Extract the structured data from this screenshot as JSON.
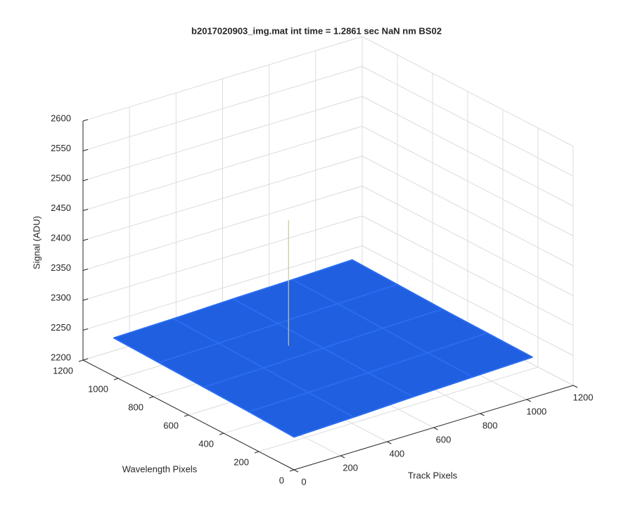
{
  "chart_data": {
    "type": "surface",
    "title": "b2017020903_img.mat int time = 1.2861 sec  NaN nm BS02",
    "xlabel": "Track Pixels",
    "ylabel": "Wavelength Pixels",
    "zlabel": "Signal (ADU)",
    "xlim": [
      0,
      1200
    ],
    "ylim": [
      0,
      1200
    ],
    "zlim": [
      2200,
      2600
    ],
    "xticks": [
      0,
      200,
      400,
      600,
      800,
      1000,
      1200
    ],
    "yticks": [
      0,
      200,
      400,
      600,
      800,
      1000,
      1200
    ],
    "zticks": [
      2200,
      2250,
      2300,
      2350,
      2400,
      2450,
      2500,
      2550,
      2600
    ],
    "grid": true,
    "color": "#1f5fe0",
    "x": [
      0,
      256,
      512,
      768,
      1024
    ],
    "y": [
      0,
      256,
      512,
      768,
      1024
    ],
    "z": [
      [
        2255,
        2258,
        2262,
        2265,
        2268
      ],
      [
        2258,
        2260,
        2263,
        2266,
        2269
      ],
      [
        2260,
        2262,
        2265,
        2268,
        2270
      ],
      [
        2262,
        2264,
        2267,
        2270,
        2272
      ],
      [
        2264,
        2266,
        2269,
        2271,
        2274
      ]
    ],
    "spike": {
      "x": 430,
      "y": 600,
      "z": 2475,
      "color": "#c8c89a"
    }
  }
}
